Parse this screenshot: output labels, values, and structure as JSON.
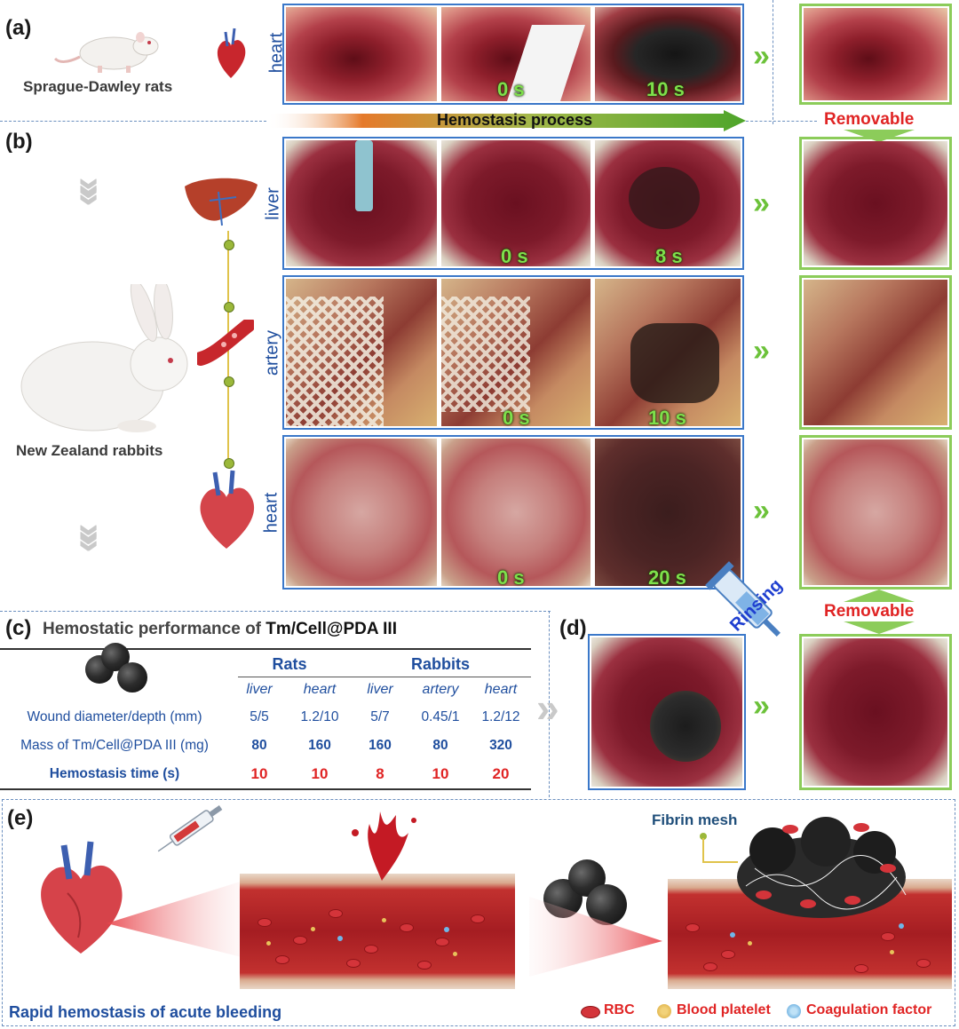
{
  "panels": {
    "a": "(a)",
    "b": "(b)",
    "c": "(c)",
    "d": "(d)",
    "e": "(e)"
  },
  "animals": {
    "rats": "Sprague-Dawley rats",
    "rabbits": "New Zealand rabbits"
  },
  "organs": {
    "a_heart": "heart",
    "liver": "liver",
    "artery": "artery",
    "b_heart": "heart"
  },
  "times": {
    "a_t0": "0 s",
    "a_t1": "10 s",
    "liver_t0": "0 s",
    "liver_t1": "8 s",
    "artery_t0": "0 s",
    "artery_t1": "10 s",
    "heart_t0": "0 s",
    "heart_t1": "20 s"
  },
  "hemostasis_process": "Hemostasis process",
  "removable": "Removable",
  "table": {
    "title_prefix": "Hemostatic performance of ",
    "title_material": "Tm/Cell@PDA III",
    "groups": [
      "Rats",
      "Rabbits"
    ],
    "columns": [
      "liver",
      "heart",
      "liver",
      "artery",
      "heart"
    ],
    "rows": [
      {
        "label": "Wound diameter/depth (mm)",
        "values": [
          "5/5",
          "1.2/10",
          "5/7",
          "0.45/1",
          "1.2/12"
        ]
      },
      {
        "label": "Mass of Tm/Cell@PDA III (mg)",
        "values": [
          "80",
          "160",
          "160",
          "80",
          "320"
        ]
      },
      {
        "label": "Hemostasis time (s)",
        "values": [
          "10",
          "10",
          "8",
          "10",
          "20"
        ]
      }
    ]
  },
  "rinsing": "Rinsing",
  "e": {
    "fibrin": "Fibrin mesh",
    "caption": "Rapid hemostasis of acute bleeding",
    "legend": {
      "rbc": "RBC",
      "platelet": "Blood platelet",
      "coag": "Coagulation factor"
    }
  },
  "colors": {
    "blue_frame": "#3b78c9",
    "green_frame": "#8ccc5a",
    "red_text": "#e02424",
    "blue_text": "#1f4e9e",
    "time_green": "#7ee04b"
  }
}
